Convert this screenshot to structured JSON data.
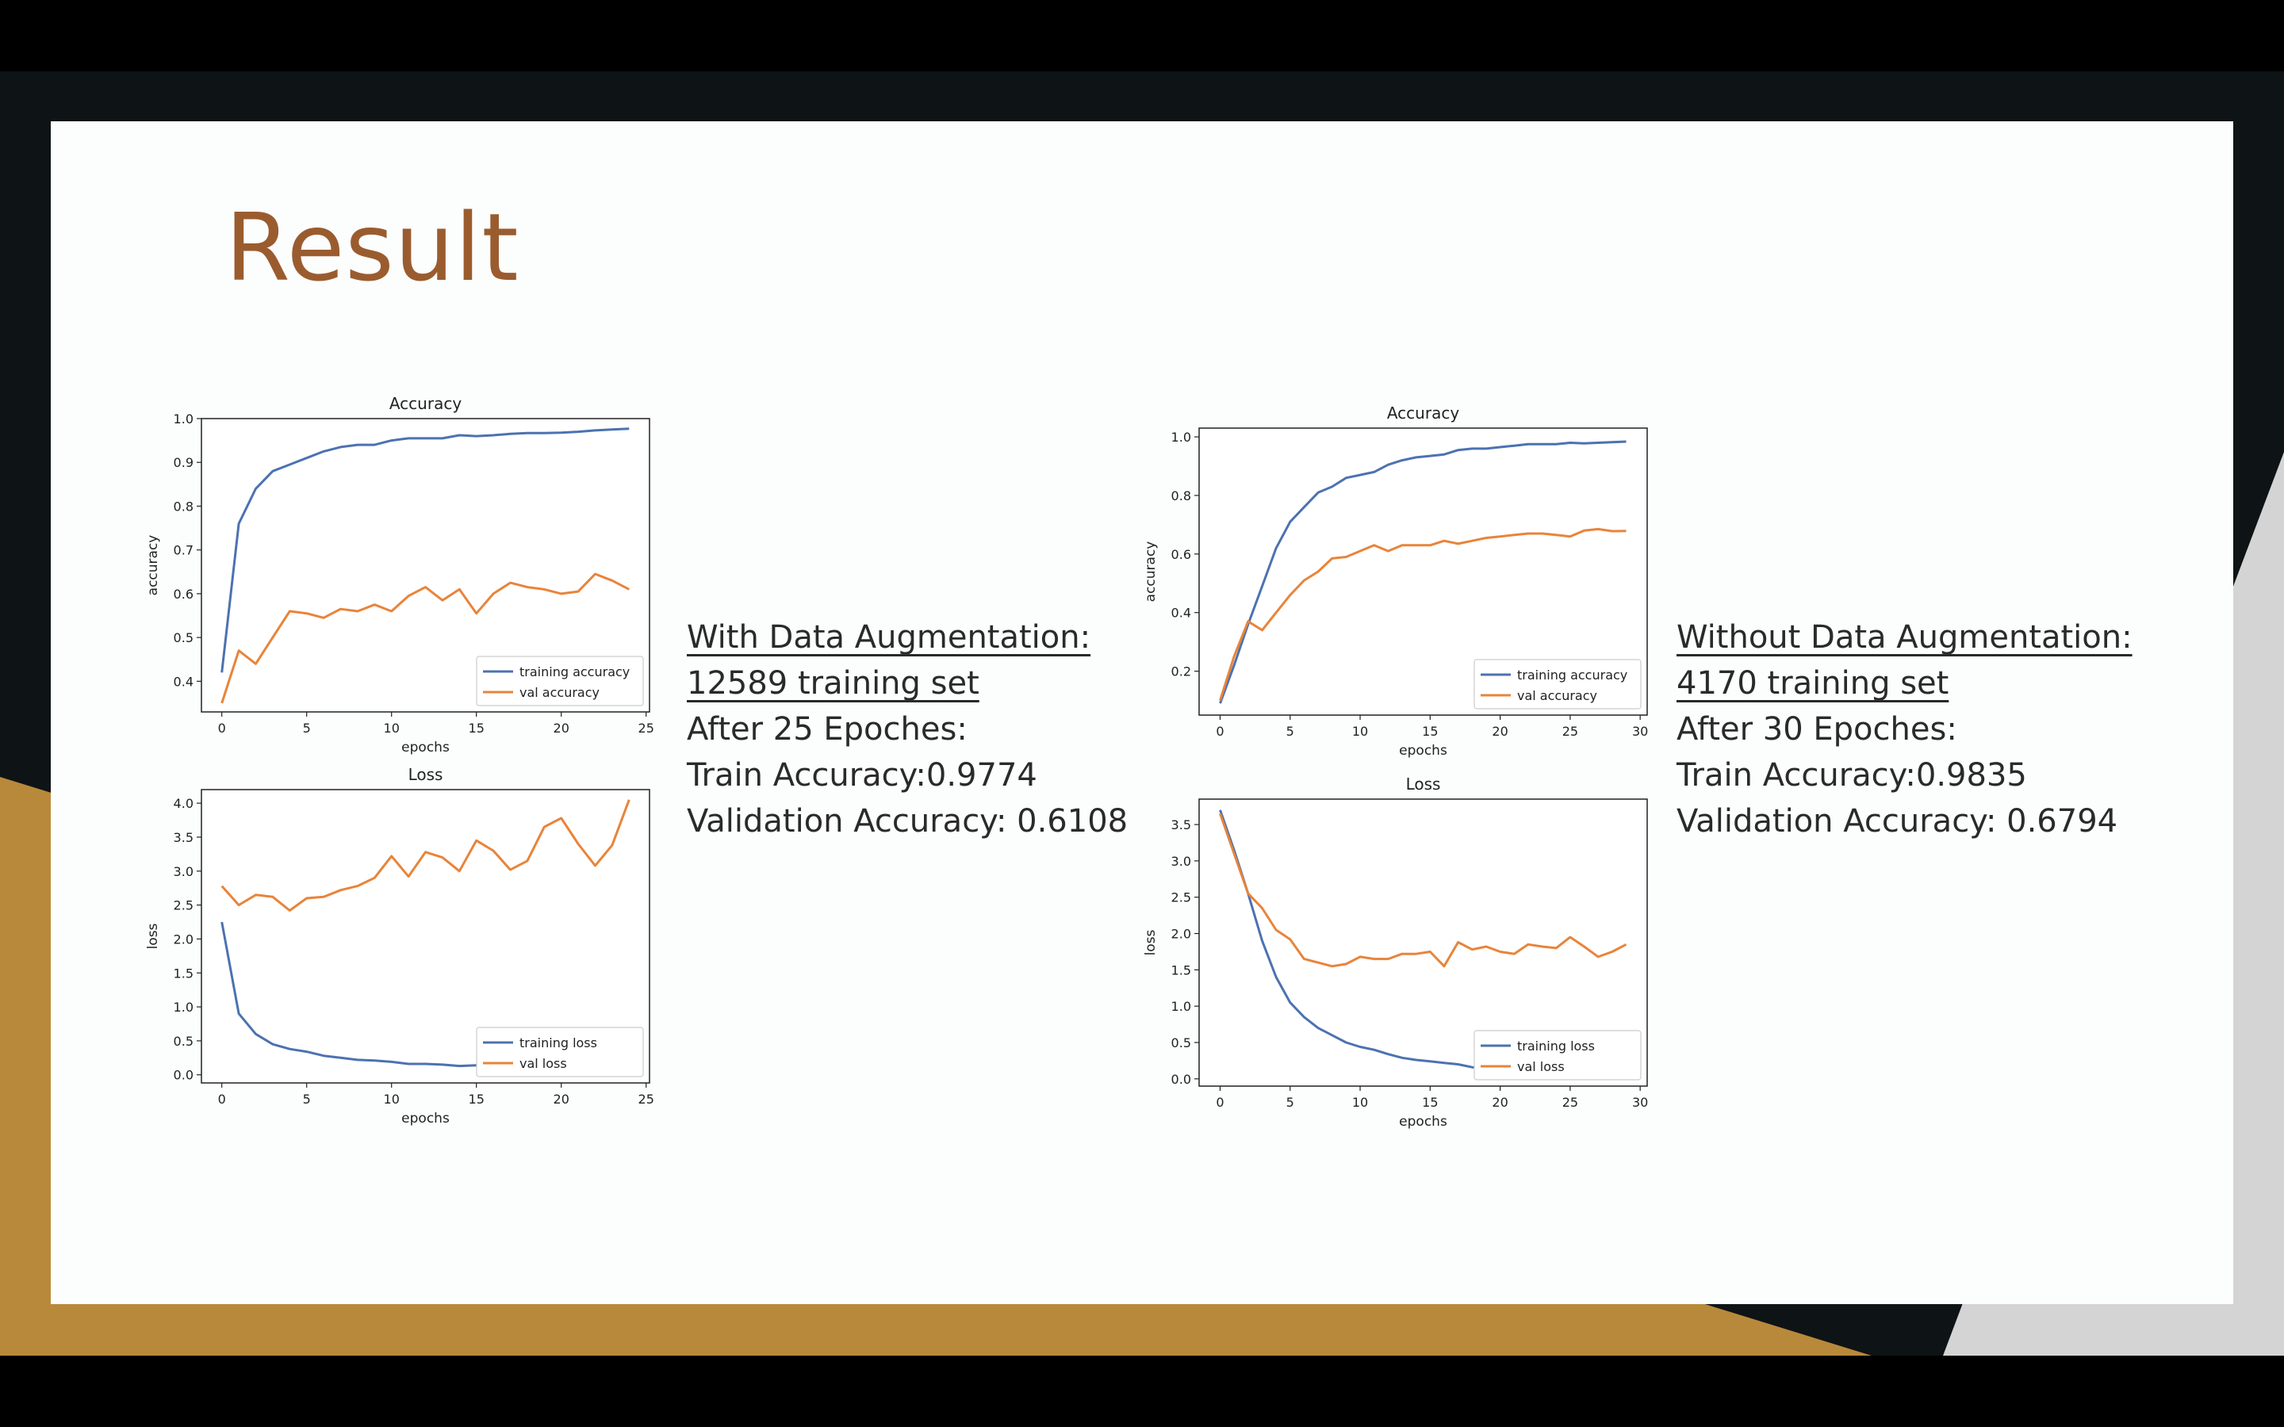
{
  "slide": {
    "title": "Result",
    "left_info": {
      "heading": "With Data Augmentation:",
      "training_set": "12589 training set",
      "epochs": "After 25 Epoches:",
      "train_acc": "Train Accuracy:0.9774",
      "val_acc": "Validation Accuracy: 0.6108"
    },
    "right_info": {
      "heading": "Without Data Augmentation:",
      "training_set": "4170 training set",
      "epochs": "After 30 Epoches:",
      "train_acc": "Train Accuracy:0.9835",
      "val_acc": "Validation Accuracy: 0.6794"
    }
  },
  "colors": {
    "training": "#4c72b0",
    "val": "#e8843a",
    "title": "#9a5c2f"
  },
  "chart_data": [
    {
      "id": "aug-accuracy",
      "type": "line",
      "title": "Accuracy",
      "xlabel": "epochs",
      "ylabel": "accuracy",
      "xlim": [
        -1.2,
        25.2
      ],
      "ylim": [
        0.33,
        1.0
      ],
      "xticks": [
        0,
        5,
        10,
        15,
        20,
        25
      ],
      "yticks": [
        0.4,
        0.5,
        0.6,
        0.7,
        0.8,
        0.9,
        1.0
      ],
      "ytick_labels": [
        "0.4",
        "0.5",
        "0.6",
        "0.7",
        "0.8",
        "0.9",
        "1.0"
      ],
      "legend": "lower-right",
      "series": [
        {
          "name": "training accuracy",
          "color_key": "training",
          "values": [
            0.42,
            0.76,
            0.84,
            0.88,
            0.895,
            0.91,
            0.925,
            0.935,
            0.94,
            0.94,
            0.95,
            0.955,
            0.955,
            0.955,
            0.962,
            0.96,
            0.962,
            0.965,
            0.967,
            0.967,
            0.968,
            0.97,
            0.973,
            0.975,
            0.977
          ]
        },
        {
          "name": "val accuracy",
          "color_key": "val",
          "values": [
            0.35,
            0.47,
            0.44,
            0.5,
            0.56,
            0.555,
            0.545,
            0.565,
            0.56,
            0.575,
            0.56,
            0.595,
            0.615,
            0.585,
            0.61,
            0.555,
            0.6,
            0.625,
            0.615,
            0.61,
            0.6,
            0.605,
            0.645,
            0.63,
            0.61
          ]
        }
      ]
    },
    {
      "id": "aug-loss",
      "type": "line",
      "title": "Loss",
      "xlabel": "epochs",
      "ylabel": "loss",
      "xlim": [
        -1.2,
        25.2
      ],
      "ylim": [
        -0.12,
        4.2
      ],
      "xticks": [
        0,
        5,
        10,
        15,
        20,
        25
      ],
      "yticks": [
        0.0,
        0.5,
        1.0,
        1.5,
        2.0,
        2.5,
        3.0,
        3.5,
        4.0
      ],
      "ytick_labels": [
        "0.0",
        "0.5",
        "1.0",
        "1.5",
        "2.0",
        "2.5",
        "3.0",
        "3.5",
        "4.0"
      ],
      "legend": "lower-right",
      "series": [
        {
          "name": "training loss",
          "color_key": "training",
          "values": [
            2.25,
            0.9,
            0.6,
            0.45,
            0.38,
            0.34,
            0.28,
            0.25,
            0.22,
            0.21,
            0.19,
            0.16,
            0.16,
            0.15,
            0.13,
            0.14,
            0.12,
            0.12,
            0.12,
            0.11,
            0.11,
            0.1,
            0.1,
            0.09,
            0.09
          ]
        },
        {
          "name": "val loss",
          "color_key": "val",
          "values": [
            2.78,
            2.5,
            2.65,
            2.62,
            2.42,
            2.6,
            2.62,
            2.72,
            2.78,
            2.9,
            3.22,
            2.92,
            3.28,
            3.2,
            3.0,
            3.45,
            3.3,
            3.02,
            3.15,
            3.65,
            3.78,
            3.4,
            3.08,
            3.38,
            4.05
          ]
        }
      ]
    },
    {
      "id": "noaug-accuracy",
      "type": "line",
      "title": "Accuracy",
      "xlabel": "epochs",
      "ylabel": "accuracy",
      "xlim": [
        -1.5,
        30.5
      ],
      "ylim": [
        0.05,
        1.03
      ],
      "xticks": [
        0,
        5,
        10,
        15,
        20,
        25,
        30
      ],
      "yticks": [
        0.2,
        0.4,
        0.6,
        0.8,
        1.0
      ],
      "ytick_labels": [
        "0.2",
        "0.4",
        "0.6",
        "0.8",
        "1.0"
      ],
      "legend": "lower-right",
      "series": [
        {
          "name": "training accuracy",
          "color_key": "training",
          "values": [
            0.09,
            0.22,
            0.36,
            0.49,
            0.62,
            0.71,
            0.76,
            0.81,
            0.83,
            0.86,
            0.87,
            0.88,
            0.905,
            0.92,
            0.93,
            0.935,
            0.94,
            0.955,
            0.96,
            0.96,
            0.965,
            0.97,
            0.975,
            0.975,
            0.975,
            0.98,
            0.978,
            0.98,
            0.982,
            0.984
          ]
        },
        {
          "name": "val accuracy",
          "color_key": "val",
          "values": [
            0.1,
            0.25,
            0.37,
            0.34,
            0.4,
            0.46,
            0.51,
            0.54,
            0.585,
            0.59,
            0.61,
            0.63,
            0.61,
            0.63,
            0.63,
            0.63,
            0.645,
            0.635,
            0.645,
            0.655,
            0.66,
            0.665,
            0.67,
            0.67,
            0.665,
            0.66,
            0.68,
            0.685,
            0.678,
            0.679
          ]
        }
      ]
    },
    {
      "id": "noaug-loss",
      "type": "line",
      "title": "Loss",
      "xlabel": "epochs",
      "ylabel": "loss",
      "xlim": [
        -1.5,
        30.5
      ],
      "ylim": [
        -0.1,
        3.85
      ],
      "xticks": [
        0,
        5,
        10,
        15,
        20,
        25,
        30
      ],
      "yticks": [
        0.0,
        0.5,
        1.0,
        1.5,
        2.0,
        2.5,
        3.0,
        3.5
      ],
      "ytick_labels": [
        "0.0",
        "0.5",
        "1.0",
        "1.5",
        "2.0",
        "2.5",
        "3.0",
        "3.5"
      ],
      "legend": "lower-right",
      "series": [
        {
          "name": "training loss",
          "color_key": "training",
          "values": [
            3.7,
            3.15,
            2.55,
            1.9,
            1.4,
            1.05,
            0.85,
            0.7,
            0.6,
            0.5,
            0.44,
            0.4,
            0.34,
            0.29,
            0.26,
            0.24,
            0.22,
            0.2,
            0.16,
            0.15,
            0.13,
            0.12,
            0.11,
            0.1,
            0.09,
            0.08,
            0.08,
            0.08,
            0.07,
            0.07
          ]
        },
        {
          "name": "val loss",
          "color_key": "val",
          "values": [
            3.65,
            3.1,
            2.55,
            2.35,
            2.05,
            1.92,
            1.65,
            1.6,
            1.55,
            1.58,
            1.68,
            1.65,
            1.65,
            1.72,
            1.72,
            1.75,
            1.55,
            1.88,
            1.78,
            1.82,
            1.75,
            1.72,
            1.85,
            1.82,
            1.8,
            1.95,
            1.82,
            1.68,
            1.75,
            1.85
          ]
        }
      ]
    }
  ]
}
